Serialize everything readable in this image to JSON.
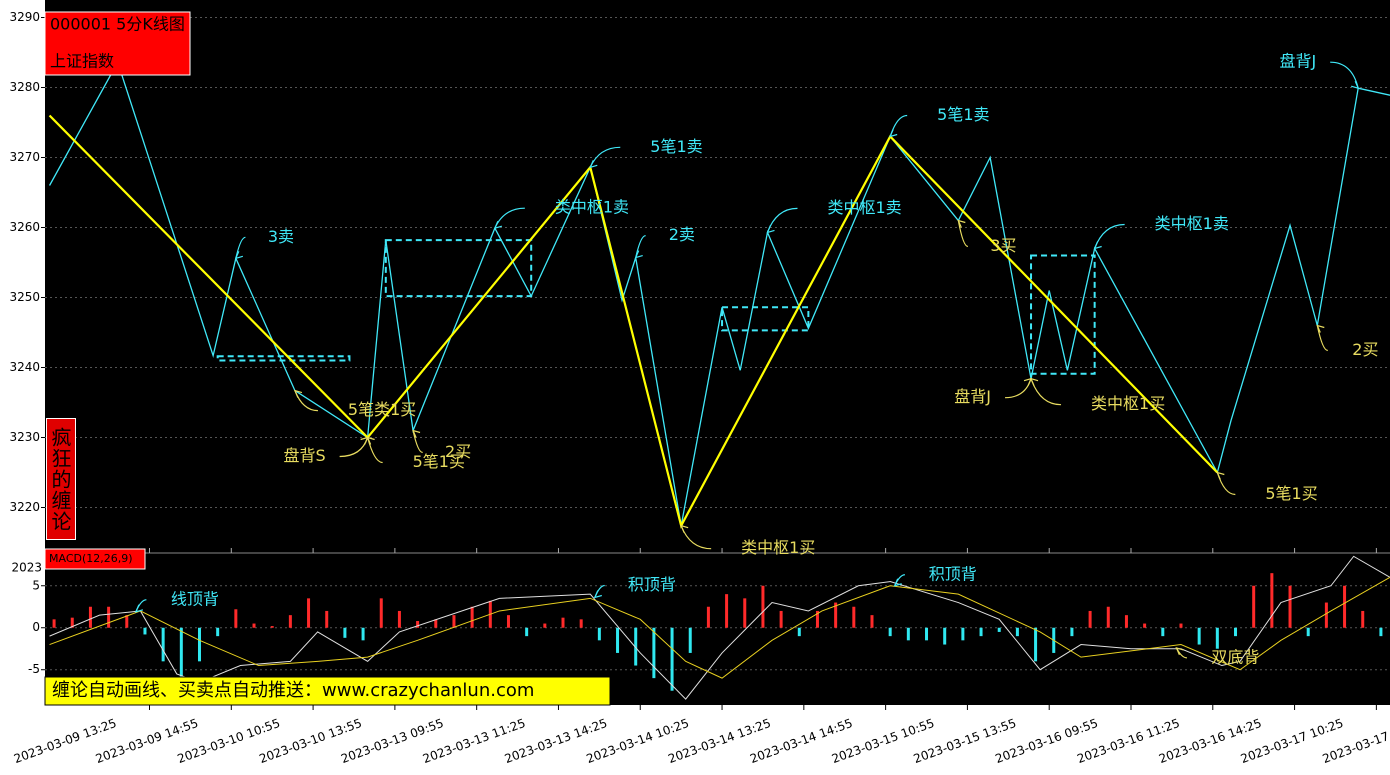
{
  "header": {
    "title": "000001 5分K线图",
    "name": "上证指数",
    "side_text": "疯狂的缠论",
    "banner": "缠论自动画线、买卖点自动推送：www.crazychanlun.com"
  },
  "chart_data": [
    {
      "type": "line",
      "xlim": [
        -23,
        273
      ],
      "ylim": [
        3213.5,
        3292.5
      ],
      "yticks": [
        3220,
        3230,
        3240,
        3250,
        3260,
        3270,
        3280,
        3290
      ],
      "grid": true,
      "xticks": [
        {
          "value": 0,
          "label": "2023-03-09 13:25"
        },
        {
          "value": 18,
          "label": "2023-03-09 14:55"
        },
        {
          "value": 36,
          "label": "2023-03-10 10:55"
        },
        {
          "value": 54,
          "label": "2023-03-10 13:55"
        },
        {
          "value": 72,
          "label": "2023-03-13 09:55"
        },
        {
          "value": 90,
          "label": "2023-03-13 11:25"
        },
        {
          "value": 108,
          "label": "2023-03-13 14:25"
        },
        {
          "value": 126,
          "label": "2023-03-14 10:25"
        },
        {
          "value": 144,
          "label": "2023-03-14 13:25"
        },
        {
          "value": 162,
          "label": "2023-03-14 14:55"
        },
        {
          "value": 180,
          "label": "2023-03-15 10:55"
        },
        {
          "value": 198,
          "label": "2023-03-15 13:55"
        },
        {
          "value": 216,
          "label": "2023-03-16 09:55"
        },
        {
          "value": 234,
          "label": "2023-03-16 11:25"
        },
        {
          "value": 252,
          "label": "2023-03-16 14:25"
        },
        {
          "value": 270,
          "label": "2023-03-17 10:25"
        },
        {
          "value": 288,
          "label": "2023-03-17"
        }
      ],
      "series": [
        {
          "color": "#40e8f8",
          "width": 1.3,
          "x": [
            -22,
            -7,
            14,
            19,
            32,
            48,
            52,
            58,
            76,
            84,
            97,
            104,
            107,
            117,
            126,
            130,
            136,
            145,
            163,
            178,
            185,
            194,
            198,
            202,
            208,
            235,
            238,
            251,
            257,
            266,
            273
          ],
          "values": [
            3266.0,
            3283.6,
            3241.7,
            3255.6,
            3236.7,
            3230.0,
            3258.2,
            3231.0,
            3259.9,
            3250.2,
            3268.6,
            3249.6,
            3255.7,
            3217.4,
            3248.6,
            3239.6,
            3259.3,
            3245.6,
            3273.0,
            3261.0,
            3270.0,
            3238.4,
            3251.0,
            3239.6,
            3257.0,
            3225.0,
            3232.4,
            3260.3,
            3246.0,
            3279.9,
            3278.9
          ]
        },
        {
          "color": "#ffff00",
          "width": 2.2,
          "x": [
            -22,
            48,
            97,
            117,
            163,
            235
          ],
          "values": [
            3276.0,
            3230.0,
            3268.6,
            3217.4,
            3273.0,
            3225.0
          ]
        }
      ],
      "pivots": [
        {
          "x": [
            15,
            44
          ],
          "values": [
            3241.6,
            3241.0
          ]
        },
        {
          "x": [
            52,
            84
          ],
          "values": [
            3258.2,
            3250.2
          ]
        },
        {
          "x": [
            126,
            145
          ],
          "values": [
            3248.6,
            3245.3
          ]
        },
        {
          "x": [
            194,
            208
          ],
          "values": [
            3256.0,
            3239.1
          ]
        }
      ],
      "pivot_color": "#40e8f8",
      "annotations": [
        {
          "text": "3卖",
          "x": 19,
          "y": 3255.6,
          "color": "#40e8f8"
        },
        {
          "text": "类中枢1卖",
          "x": 76,
          "y": 3259.9,
          "color": "#40e8f8"
        },
        {
          "text": "5笔1卖",
          "x": 97,
          "y": 3268.6,
          "color": "#40e8f8"
        },
        {
          "text": "2卖",
          "x": 107,
          "y": 3255.7,
          "color": "#40e8f8"
        },
        {
          "text": "类中枢1卖",
          "x": 136,
          "y": 3259.3,
          "color": "#40e8f8"
        },
        {
          "text": "5笔1卖",
          "x": 163,
          "y": 3273.0,
          "color": "#40e8f8"
        },
        {
          "text": "类中枢1卖",
          "x": 208,
          "y": 3257.0,
          "color": "#40e8f8"
        },
        {
          "text": "盘背J",
          "x": 266,
          "y": 3279.9,
          "color": "#40e8f8"
        },
        {
          "text": "5笔类1买",
          "x": 32,
          "y": 3236.7,
          "color": "#e8dc60"
        },
        {
          "text": "盘背S",
          "x": 48,
          "y": 3230.0,
          "color": "#e8dc60"
        },
        {
          "text": "5笔1买",
          "x": 48,
          "y": 3230.0,
          "color": "#e8dc60"
        },
        {
          "text": "2买",
          "x": 58,
          "y": 3231.0,
          "color": "#e8dc60"
        },
        {
          "text": "类中枢1买",
          "x": 117,
          "y": 3217.4,
          "color": "#e8dc60"
        },
        {
          "text": "3买",
          "x": 178,
          "y": 3261.0,
          "color": "#e8dc60"
        },
        {
          "text": "盘背J",
          "x": 194,
          "y": 3238.4,
          "color": "#e8dc60"
        },
        {
          "text": "类中枢1买",
          "x": 194,
          "y": 3238.4,
          "color": "#e8dc60"
        },
        {
          "text": "5笔1买",
          "x": 235,
          "y": 3225.0,
          "color": "#e8dc60"
        },
        {
          "text": "2买",
          "x": 257,
          "y": 3246.0,
          "color": "#e8dc60"
        }
      ]
    },
    {
      "type": "bar",
      "label": "MACD(12,26,9)",
      "corner_text": "2023",
      "xlim": [
        -23,
        273
      ],
      "ylim": [
        -9.2,
        8.9
      ],
      "yticks": [
        5,
        0,
        -5
      ],
      "up_color": "#ff2a2a",
      "down_color": "#30e8f0",
      "x": [
        -21,
        -17,
        -13,
        -9,
        -5,
        -1,
        3,
        7,
        11,
        15,
        19,
        23,
        27,
        31,
        35,
        39,
        43,
        47,
        51,
        55,
        59,
        63,
        67,
        71,
        75,
        79,
        83,
        87,
        91,
        95,
        99,
        103,
        107,
        111,
        115,
        119,
        123,
        127,
        131,
        135,
        139,
        143,
        147,
        151,
        155,
        159,
        163,
        167,
        171,
        175,
        179,
        183,
        187,
        191,
        195,
        199,
        203,
        207,
        211,
        215,
        219,
        223,
        227,
        231,
        235,
        239,
        243,
        247,
        251,
        255,
        259,
        263,
        267,
        271
      ],
      "values": [
        1,
        1.2,
        2.5,
        2.5,
        1.5,
        -0.8,
        -4,
        -7,
        -4,
        -1,
        2.2,
        0.5,
        0.2,
        1.5,
        3.5,
        2,
        -1.2,
        -1.5,
        3.5,
        2,
        0.8,
        1,
        1.5,
        2.5,
        3.2,
        1.5,
        -1,
        0.5,
        1.2,
        1,
        -1.5,
        -3,
        -4.5,
        -6,
        -7.5,
        -3,
        2.5,
        4,
        3.5,
        5,
        2,
        -1,
        2,
        3,
        2.5,
        1.5,
        -1,
        -1.5,
        -1.5,
        -2,
        -1.5,
        -1,
        -0.5,
        -1,
        -4,
        -3,
        -1,
        2,
        2.5,
        1.5,
        0.5,
        -1,
        0.5,
        -2,
        -2.5,
        -1,
        5,
        6.5,
        5,
        -1,
        3,
        5,
        2,
        -1
      ],
      "lines": [
        {
          "color": "#e0e0e0",
          "x": [
            -22,
            -11,
            -2,
            6,
            11,
            20,
            31,
            37,
            48,
            55,
            66,
            77,
            97,
            108,
            118,
            126,
            137,
            145,
            156,
            163,
            178,
            187,
            196,
            205,
            216,
            227,
            236,
            240,
            249,
            260,
            265,
            273
          ],
          "values": [
            -1,
            1.5,
            2,
            -5.5,
            -6.5,
            -4.5,
            -4,
            -0.5,
            -4,
            -0.5,
            1.5,
            3.5,
            4,
            -3,
            -8.5,
            -3,
            3,
            2,
            5,
            5.5,
            3,
            1,
            -5,
            -2,
            -2.5,
            -2.5,
            -4.5,
            -4,
            3,
            5,
            8.5,
            6
          ]
        },
        {
          "color": "#e8d020",
          "x": [
            -22,
            -2,
            11,
            24,
            37,
            48,
            59,
            77,
            97,
            108,
            118,
            126,
            137,
            148,
            163,
            178,
            196,
            205,
            227,
            240,
            249,
            260,
            273
          ],
          "values": [
            -2,
            2,
            -1.5,
            -4.5,
            -4,
            -3.5,
            -1.5,
            2,
            3.5,
            1,
            -4,
            -6,
            -1.5,
            2,
            5,
            4,
            -0.5,
            -3.5,
            -2,
            -5,
            -1.5,
            2,
            6
          ]
        }
      ],
      "annotations": [
        {
          "text": "线顶背",
          "x": -3,
          "y": 1.9,
          "color": "#40e8f8"
        },
        {
          "text": "积顶背",
          "x": 98,
          "y": 3.6,
          "color": "#40e8f8"
        },
        {
          "text": "积顶背",
          "x": 164,
          "y": 5.0,
          "color": "#40e8f8"
        },
        {
          "text": "双底背",
          "x": 226,
          "y": -2.4,
          "color": "#e8dc60"
        }
      ]
    }
  ]
}
